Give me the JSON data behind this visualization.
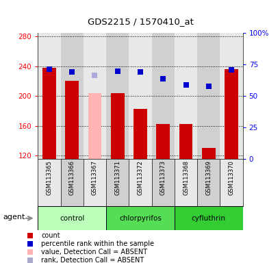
{
  "title": "GDS2215 / 1570410_at",
  "samples": [
    "GSM113365",
    "GSM113366",
    "GSM113367",
    "GSM113371",
    "GSM113372",
    "GSM113373",
    "GSM113368",
    "GSM113369",
    "GSM113370"
  ],
  "bar_values": [
    238,
    220,
    204,
    204,
    183,
    162,
    162,
    130,
    236
  ],
  "bar_colors": [
    "#cc0000",
    "#cc0000",
    "#ffb3b3",
    "#cc0000",
    "#cc0000",
    "#cc0000",
    "#cc0000",
    "#cc0000",
    "#cc0000"
  ],
  "dot_values": [
    236,
    232,
    228,
    233,
    232,
    223,
    215,
    213,
    235
  ],
  "dot_colors": [
    "#0000cc",
    "#0000cc",
    "#aaaadd",
    "#0000cc",
    "#0000cc",
    "#0000cc",
    "#0000cc",
    "#0000cc",
    "#0000cc"
  ],
  "ylim_left": [
    115,
    285
  ],
  "yticks_left": [
    120,
    160,
    200,
    240,
    280
  ],
  "ylim_right": [
    0,
    100
  ],
  "yticks_right": [
    0,
    25,
    50,
    75,
    100
  ],
  "yticklabels_right": [
    "0",
    "25",
    "50",
    "75",
    "100%"
  ],
  "groups": [
    {
      "label": "control",
      "start": 0,
      "end": 3,
      "color": "#bbffbb"
    },
    {
      "label": "chlorpyrifos",
      "start": 3,
      "end": 6,
      "color": "#55dd55"
    },
    {
      "label": "cyfluthrin",
      "start": 6,
      "end": 9,
      "color": "#33cc33"
    }
  ],
  "legend_items": [
    {
      "label": "count",
      "color": "#cc0000"
    },
    {
      "label": "percentile rank within the sample",
      "color": "#0000cc"
    },
    {
      "label": "value, Detection Call = ABSENT",
      "color": "#ffb3b3"
    },
    {
      "label": "rank, Detection Call = ABSENT",
      "color": "#aaaacc"
    }
  ],
  "bar_width": 0.6,
  "dot_size": 40,
  "col_bg_even": "#e8e8e8",
  "col_bg_odd": "#d0d0d0",
  "plot_bg": "#ffffff",
  "tick_area_bg": "#d0d0d0"
}
